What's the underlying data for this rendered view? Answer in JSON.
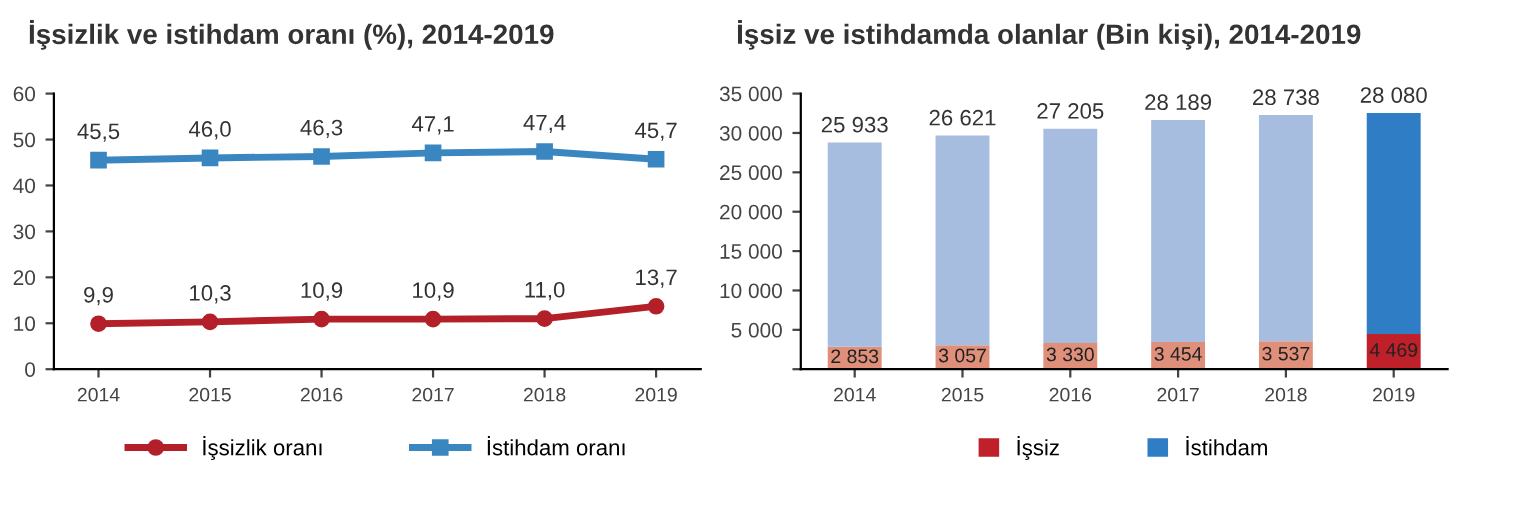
{
  "chart_data": [
    {
      "type": "line",
      "title": "İşsizlik ve istihdam oranı (%), 2014-2019",
      "categories": [
        "2014",
        "2015",
        "2016",
        "2017",
        "2018",
        "2019"
      ],
      "ylim": [
        0,
        60
      ],
      "yticks": [
        0,
        10,
        20,
        30,
        40,
        50,
        60
      ],
      "legend": "bottom",
      "grid": false,
      "series": [
        {
          "name": "İşsizlik oranı",
          "color": "#b3202a",
          "marker": "circle",
          "values": [
            9.9,
            10.3,
            10.9,
            10.9,
            11.0,
            13.7
          ],
          "value_labels": [
            "9,9",
            "10,3",
            "10,9",
            "10,9",
            "11,0",
            "13,7"
          ]
        },
        {
          "name": "İstihdam oranı",
          "color": "#3a86c0",
          "marker": "square",
          "values": [
            45.5,
            46.0,
            46.3,
            47.1,
            47.4,
            45.7
          ],
          "value_labels": [
            "45,5",
            "46,0",
            "46,3",
            "47,1",
            "47,4",
            "45,7"
          ]
        }
      ]
    },
    {
      "type": "bar",
      "stacked": true,
      "title": "İşsiz ve istihdamda olanlar (Bin kişi), 2014-2019",
      "categories": [
        "2014",
        "2015",
        "2016",
        "2017",
        "2018",
        "2019"
      ],
      "ylim": [
        0,
        35000
      ],
      "yticks": [
        {
          "value": 0,
          "label": null
        },
        {
          "value": 5000,
          "label": "5 000"
        },
        {
          "value": 10000,
          "label": "10 000"
        },
        {
          "value": 15000,
          "label": "15 000"
        },
        {
          "value": 20000,
          "label": "20 000"
        },
        {
          "value": 25000,
          "label": "25 000"
        },
        {
          "value": 30000,
          "label": "30 000"
        },
        {
          "value": 35000,
          "label": "35 000"
        }
      ],
      "legend": "bottom",
      "grid": false,
      "series": [
        {
          "name": "İşsiz",
          "color": "#c0202a",
          "colors": [
            "#e0907a",
            "#e0907a",
            "#e0907a",
            "#e0907a",
            "#e0907a",
            "#c0202a"
          ],
          "values": [
            2853,
            3057,
            3330,
            3454,
            3537,
            4469
          ],
          "value_labels": [
            "2 853",
            "3 057",
            "3 330",
            "3 454",
            "3 537",
            "4 469"
          ]
        },
        {
          "name": "İstihdam",
          "color": "#2f7dc4",
          "colors": [
            "#a6bde0",
            "#a6bde0",
            "#a6bde0",
            "#a6bde0",
            "#a6bde0",
            "#2f7dc4"
          ],
          "values": [
            25933,
            26621,
            27205,
            28189,
            28738,
            28080
          ],
          "value_labels": [
            "25 933",
            "26 621",
            "27 205",
            "28 189",
            "28 738",
            "28 080"
          ]
        }
      ]
    }
  ]
}
